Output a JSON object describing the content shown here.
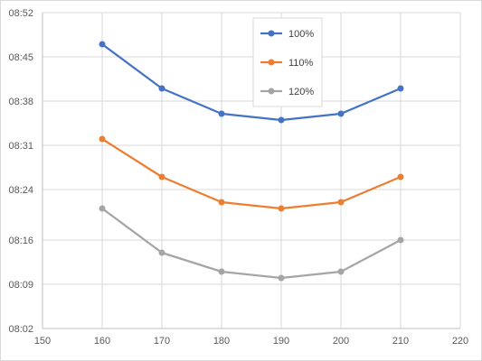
{
  "chart_data": {
    "type": "line",
    "title": "",
    "xlabel": "",
    "ylabel": "",
    "x": [
      160,
      170,
      180,
      190,
      200,
      210
    ],
    "xlim": [
      150,
      220
    ],
    "xticks": [
      150,
      160,
      170,
      180,
      190,
      200,
      210,
      220
    ],
    "ylim": [
      "08:02",
      "08:52"
    ],
    "yticks": [
      "08:02",
      "08:09",
      "08:16",
      "08:24",
      "08:31",
      "08:38",
      "08:45",
      "08:52"
    ],
    "grid": true,
    "legend_position": "top-center",
    "series": [
      {
        "name": "100%",
        "color": "#4472C4",
        "values": [
          "08:47",
          "08:40",
          "08:36",
          "08:35",
          "08:36",
          "08:40"
        ]
      },
      {
        "name": "110%",
        "color": "#ED7D31",
        "values": [
          "08:32",
          "08:26",
          "08:22",
          "08:21",
          "08:22",
          "08:26"
        ]
      },
      {
        "name": "120%",
        "color": "#A5A5A5",
        "values": [
          "08:21",
          "08:14",
          "08:11",
          "08:10",
          "08:11",
          "08:16"
        ]
      }
    ]
  }
}
